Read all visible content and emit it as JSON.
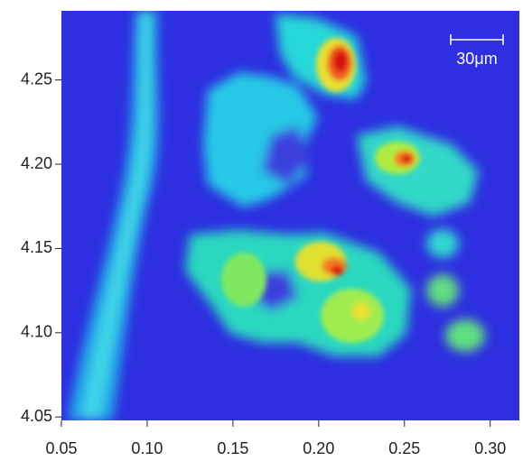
{
  "chart_data": {
    "type": "heatmap",
    "xlim": [
      0.05,
      0.317
    ],
    "ylim": [
      4.048,
      4.291
    ],
    "xticks": [
      0.05,
      {
        "value": 0.1,
        "label": "0.10"
      },
      0.15,
      {
        "value": 0.2,
        "label": "0.20"
      },
      0.25,
      {
        "value": 0.3,
        "label": "0.30"
      }
    ],
    "yticks": [
      4.05,
      {
        "value": 4.1,
        "label": "4.10"
      },
      4.15,
      {
        "value": 4.2,
        "label": "4.20"
      },
      4.25
    ],
    "annotation": "30μm"
  }
}
